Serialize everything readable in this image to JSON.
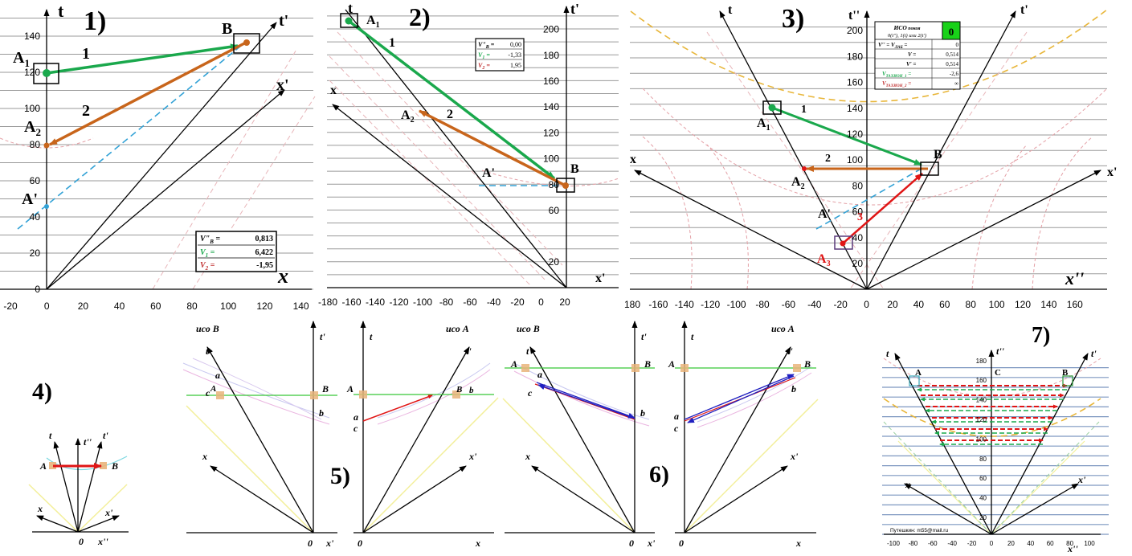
{
  "colors": {
    "green_arrow": "#1aa84c",
    "orange_arrow": "#c8651b",
    "red_arrow": "#e01515",
    "blue_arrow": "#2020c0",
    "light_dashed": "#33a2d6",
    "hyperbola": "#e4a0a6",
    "gold_hyperbola": "#e8b63a",
    "light_cone": "#f3ef9a",
    "bright_green_cell": "#19d219",
    "event_square": "#e9b47a"
  },
  "panel1": {
    "number": "1)",
    "axis_t": "t",
    "axis_tp": "t'",
    "axis_xp": "x'",
    "axis_x": "x",
    "labels": {
      "A1": "A",
      "A1sub": "1",
      "A2": "A",
      "A2sub": "2",
      "Ap": "A'",
      "B": "B",
      "one": "1",
      "two": "2"
    },
    "y_ticks": [
      "0",
      "20",
      "40",
      "60",
      "80",
      "100",
      "120",
      "140"
    ],
    "x_ticks": [
      "-20",
      "0",
      "20",
      "40",
      "60",
      "80",
      "100",
      "120",
      "140"
    ],
    "table": [
      {
        "key": "V\"",
        "sub": "B",
        "eq": " =",
        "value": "0,813"
      },
      {
        "key": "V",
        "sub": "1",
        "eq": " =",
        "value": "6,422"
      },
      {
        "key": "V",
        "sub": "2",
        "eq": " =",
        "value": "-1,95"
      }
    ]
  },
  "panel2": {
    "number": "2)",
    "axis_t": "t",
    "axis_tp": "t'",
    "axis_x": "x",
    "axis_xp": "x'",
    "labels": {
      "A1": "A",
      "A1sub": "1",
      "A2": "A",
      "A2sub": "2",
      "Ap": "A'",
      "B": "B",
      "one": "1",
      "two": "2"
    },
    "y_ticks": [
      "20",
      "60",
      "80",
      "100",
      "120",
      "140",
      "160",
      "180",
      "200"
    ],
    "x_ticks": [
      "-180",
      "-160",
      "-140",
      "-120",
      "-100",
      "-80",
      "-60",
      "-40",
      "-20",
      "0",
      "20"
    ],
    "table": [
      {
        "key": "V\"",
        "sub": "B",
        "eq": " =",
        "value": "0,00"
      },
      {
        "key": "V",
        "sub": "1",
        "eq": " =",
        "value": "-1,33"
      },
      {
        "key": "V",
        "sub": "2",
        "eq": " =",
        "value": "1,95"
      }
    ]
  },
  "panel3": {
    "number": "3)",
    "axis_t": "t",
    "axis_tpp": "t''",
    "axis_tp": "t'",
    "axis_x": "x",
    "axis_xp": "x'",
    "axis_xpp": "x''",
    "labels": {
      "A1": "A",
      "A1sub": "1",
      "A2": "A",
      "A2sub": "2",
      "A3": "A",
      "A3sub": "3",
      "Ap": "A'",
      "B": "B",
      "one": "1",
      "two": "2",
      "three": "3"
    },
    "y_ticks": [
      "20",
      "40",
      "60",
      "80",
      "100",
      "120",
      "140",
      "160",
      "180",
      "200"
    ],
    "x_ticks": [
      "180",
      "-160",
      "-140",
      "-120",
      "-100",
      "-80",
      "-60",
      "-40",
      "-20",
      "0",
      "20",
      "40",
      "60",
      "80",
      "100",
      "120",
      "140",
      "160"
    ],
    "table": {
      "header1": "ИСО",
      "header1b": " покоя",
      "header2": "0(t''), 1(t) или 2(t')",
      "header_value": "0",
      "rows": [
        {
          "key": "V'' = V",
          "sub": "ЛАБ",
          "eq": " =",
          "value": "0"
        },
        {
          "key": "V",
          "sub": "",
          "eq": " =",
          "value": "0,514"
        },
        {
          "key": "V'",
          "sub": "",
          "eq": " =",
          "value": "0,514"
        },
        {
          "key": "V",
          "sub": "ТАХИОН_1",
          "eq": " =",
          "value": "-2,6"
        },
        {
          "key": "V",
          "sub": "ТАХИОН_2",
          "eq": " =",
          "value": "∞"
        }
      ]
    }
  },
  "panel4": {
    "number": "4)",
    "axis_t": "t",
    "axis_tpp": "t''",
    "axis_tp": "t'",
    "axis_x": "x",
    "axis_xp": "x'",
    "axis_xpp": "x''",
    "labels": {
      "A": "A",
      "B": "B",
      "origin": "0"
    }
  },
  "panel5": {
    "number": "5)",
    "left": {
      "title": "исо B",
      "t": "t",
      "tp": "t'",
      "x": "x",
      "xp": "x'",
      "A": "A",
      "B": "B",
      "a": "a",
      "b": "b",
      "c": "c",
      "origin": "0"
    },
    "right": {
      "title": "исо A",
      "t": "t",
      "tp": "t'",
      "x": "x",
      "xp": "x'",
      "A": "A",
      "B": "B",
      "b": "b",
      "a": "a",
      "c": "c",
      "origin": "0"
    }
  },
  "panel6": {
    "number": "6)",
    "left": {
      "title": "исо B",
      "t": "t",
      "tp": "t'",
      "x": "x",
      "xp": "x'",
      "A": "A",
      "B": "B",
      "a": "a",
      "b": "b",
      "c": "c",
      "origin": "0"
    },
    "right": {
      "title": "исо A",
      "t": "t",
      "tp": "t'",
      "x": "x",
      "xp": "x'",
      "A": "A",
      "B": "B",
      "a": "a",
      "b": "b",
      "c": "c",
      "origin": "0"
    }
  },
  "panel7": {
    "number": "7)",
    "axis_t": "t",
    "axis_tpp": "t''",
    "axis_tp": "t'",
    "axis_x": "x",
    "axis_xp": "x'",
    "axis_xpp": "x''",
    "labels": {
      "A": "A",
      "B": "B",
      "C": "C"
    },
    "y_ticks": [
      "20",
      "40",
      "60",
      "80",
      "100",
      "120",
      "140",
      "160",
      "180"
    ],
    "x_ticks": [
      "-100",
      "-80",
      "-60",
      "-40",
      "-20",
      "0",
      "20",
      "40",
      "60",
      "80",
      "100"
    ],
    "footer": "Путешкин:  m55@mail.ru"
  }
}
